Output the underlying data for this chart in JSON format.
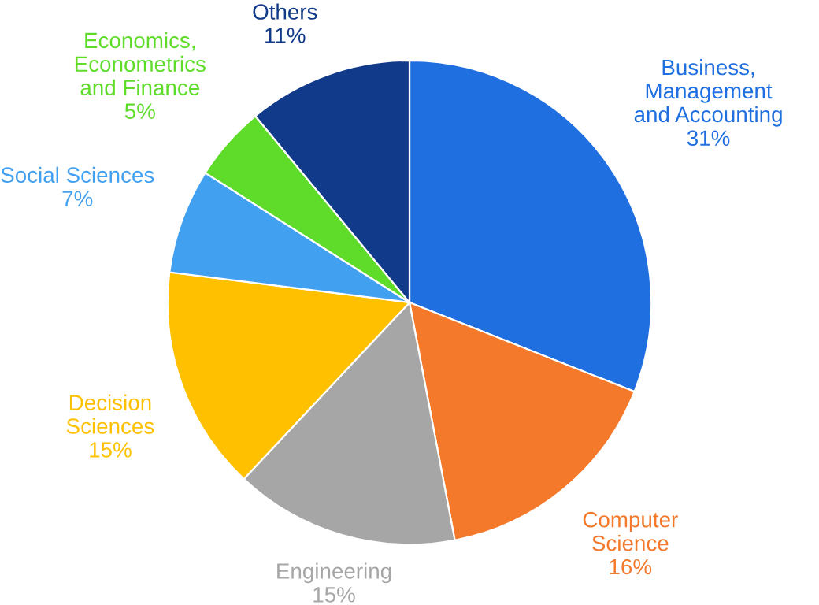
{
  "chart_data": {
    "type": "pie",
    "categories": [
      "Business,\nManagement\nand Accounting",
      "Computer\nScience",
      "Engineering",
      "Decision\nSciences",
      "Social Sciences",
      "Economics,\nEconometrics\nand Finance",
      "Others"
    ],
    "values": [
      31,
      16,
      15,
      15,
      7,
      5,
      11
    ],
    "colors": [
      "#1f6fe0",
      "#f5792a",
      "#a6a6a6",
      "#ffc000",
      "#42a0f0",
      "#5fdc2a",
      "#123a8a"
    ],
    "value_labels": [
      "31%",
      "16%",
      "15%",
      "15%",
      "7%",
      "5%",
      "11%"
    ]
  }
}
